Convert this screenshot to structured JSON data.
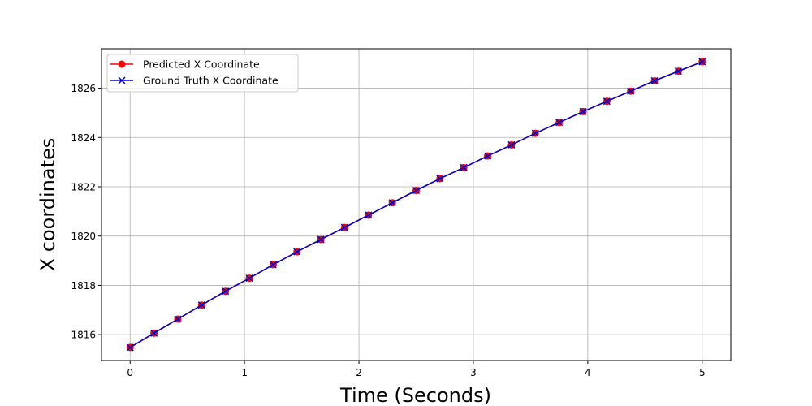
{
  "chart_data": {
    "type": "line",
    "title": "",
    "xlabel": "Time (Seconds)",
    "ylabel": "X coordinates",
    "xlim": [
      -0.25,
      5.25
    ],
    "ylim": [
      1814.95,
      1827.6
    ],
    "xticks": [
      0,
      1,
      2,
      3,
      4,
      5
    ],
    "yticks": [
      1816,
      1818,
      1820,
      1822,
      1824,
      1826
    ],
    "grid": true,
    "legend_position": "upper-left",
    "x": [
      0,
      0.2083,
      0.4167,
      0.625,
      0.8333,
      1.0417,
      1.25,
      1.4583,
      1.6667,
      1.875,
      2.0833,
      2.2917,
      2.5,
      2.7083,
      2.9167,
      3.125,
      3.3333,
      3.5417,
      3.75,
      3.9583,
      4.1667,
      4.375,
      4.5833,
      4.7917,
      5
    ],
    "series": [
      {
        "name": "Predicted X Coordinate",
        "color": "#ff0000",
        "marker": "circle",
        "values": [
          1815.48,
          1816.06,
          1816.63,
          1817.2,
          1817.76,
          1818.29,
          1818.84,
          1819.36,
          1819.86,
          1820.35,
          1820.85,
          1821.35,
          1821.85,
          1822.33,
          1822.78,
          1823.25,
          1823.7,
          1824.17,
          1824.61,
          1825.05,
          1825.47,
          1825.88,
          1826.3,
          1826.69,
          1827.07
        ]
      },
      {
        "name": "Ground Truth X Coordinate",
        "color": "#0000cc",
        "marker": "x",
        "values": [
          1815.48,
          1816.06,
          1816.63,
          1817.2,
          1817.76,
          1818.29,
          1818.84,
          1819.36,
          1819.86,
          1820.35,
          1820.85,
          1821.35,
          1821.85,
          1822.33,
          1822.78,
          1823.25,
          1823.7,
          1824.17,
          1824.61,
          1825.05,
          1825.47,
          1825.88,
          1826.3,
          1826.69,
          1827.07
        ]
      }
    ]
  }
}
